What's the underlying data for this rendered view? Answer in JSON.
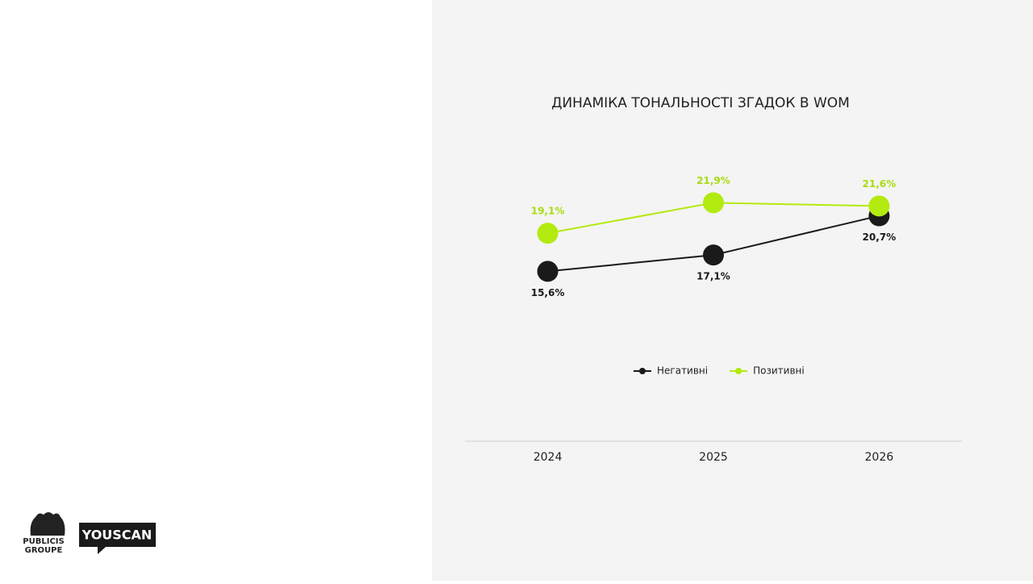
{
  "chart_data": {
    "type": "line",
    "title": "ДИНАМІКА ТОНАЛЬНОСТІ ЗГАДОК В WOM",
    "categories": [
      "2024",
      "2025",
      "2026"
    ],
    "series": [
      {
        "name": "Негативні",
        "color": "#1a1a1a",
        "values": [
          15.6,
          17.1,
          20.7
        ],
        "value_labels": [
          "15,6%",
          "17,1%",
          "20,7%"
        ]
      },
      {
        "name": "Позитивні",
        "color": "#b3ea0f",
        "values": [
          19.1,
          21.9,
          21.6
        ],
        "value_labels": [
          "19,1%",
          "21,9%",
          "21,6%"
        ]
      }
    ],
    "ylim": [
      0,
      30
    ],
    "legend": "bottom"
  },
  "logos": {
    "publicis": "PUBLICIS",
    "groupe": "GROUPE",
    "youscan": "YOUSCAN"
  }
}
